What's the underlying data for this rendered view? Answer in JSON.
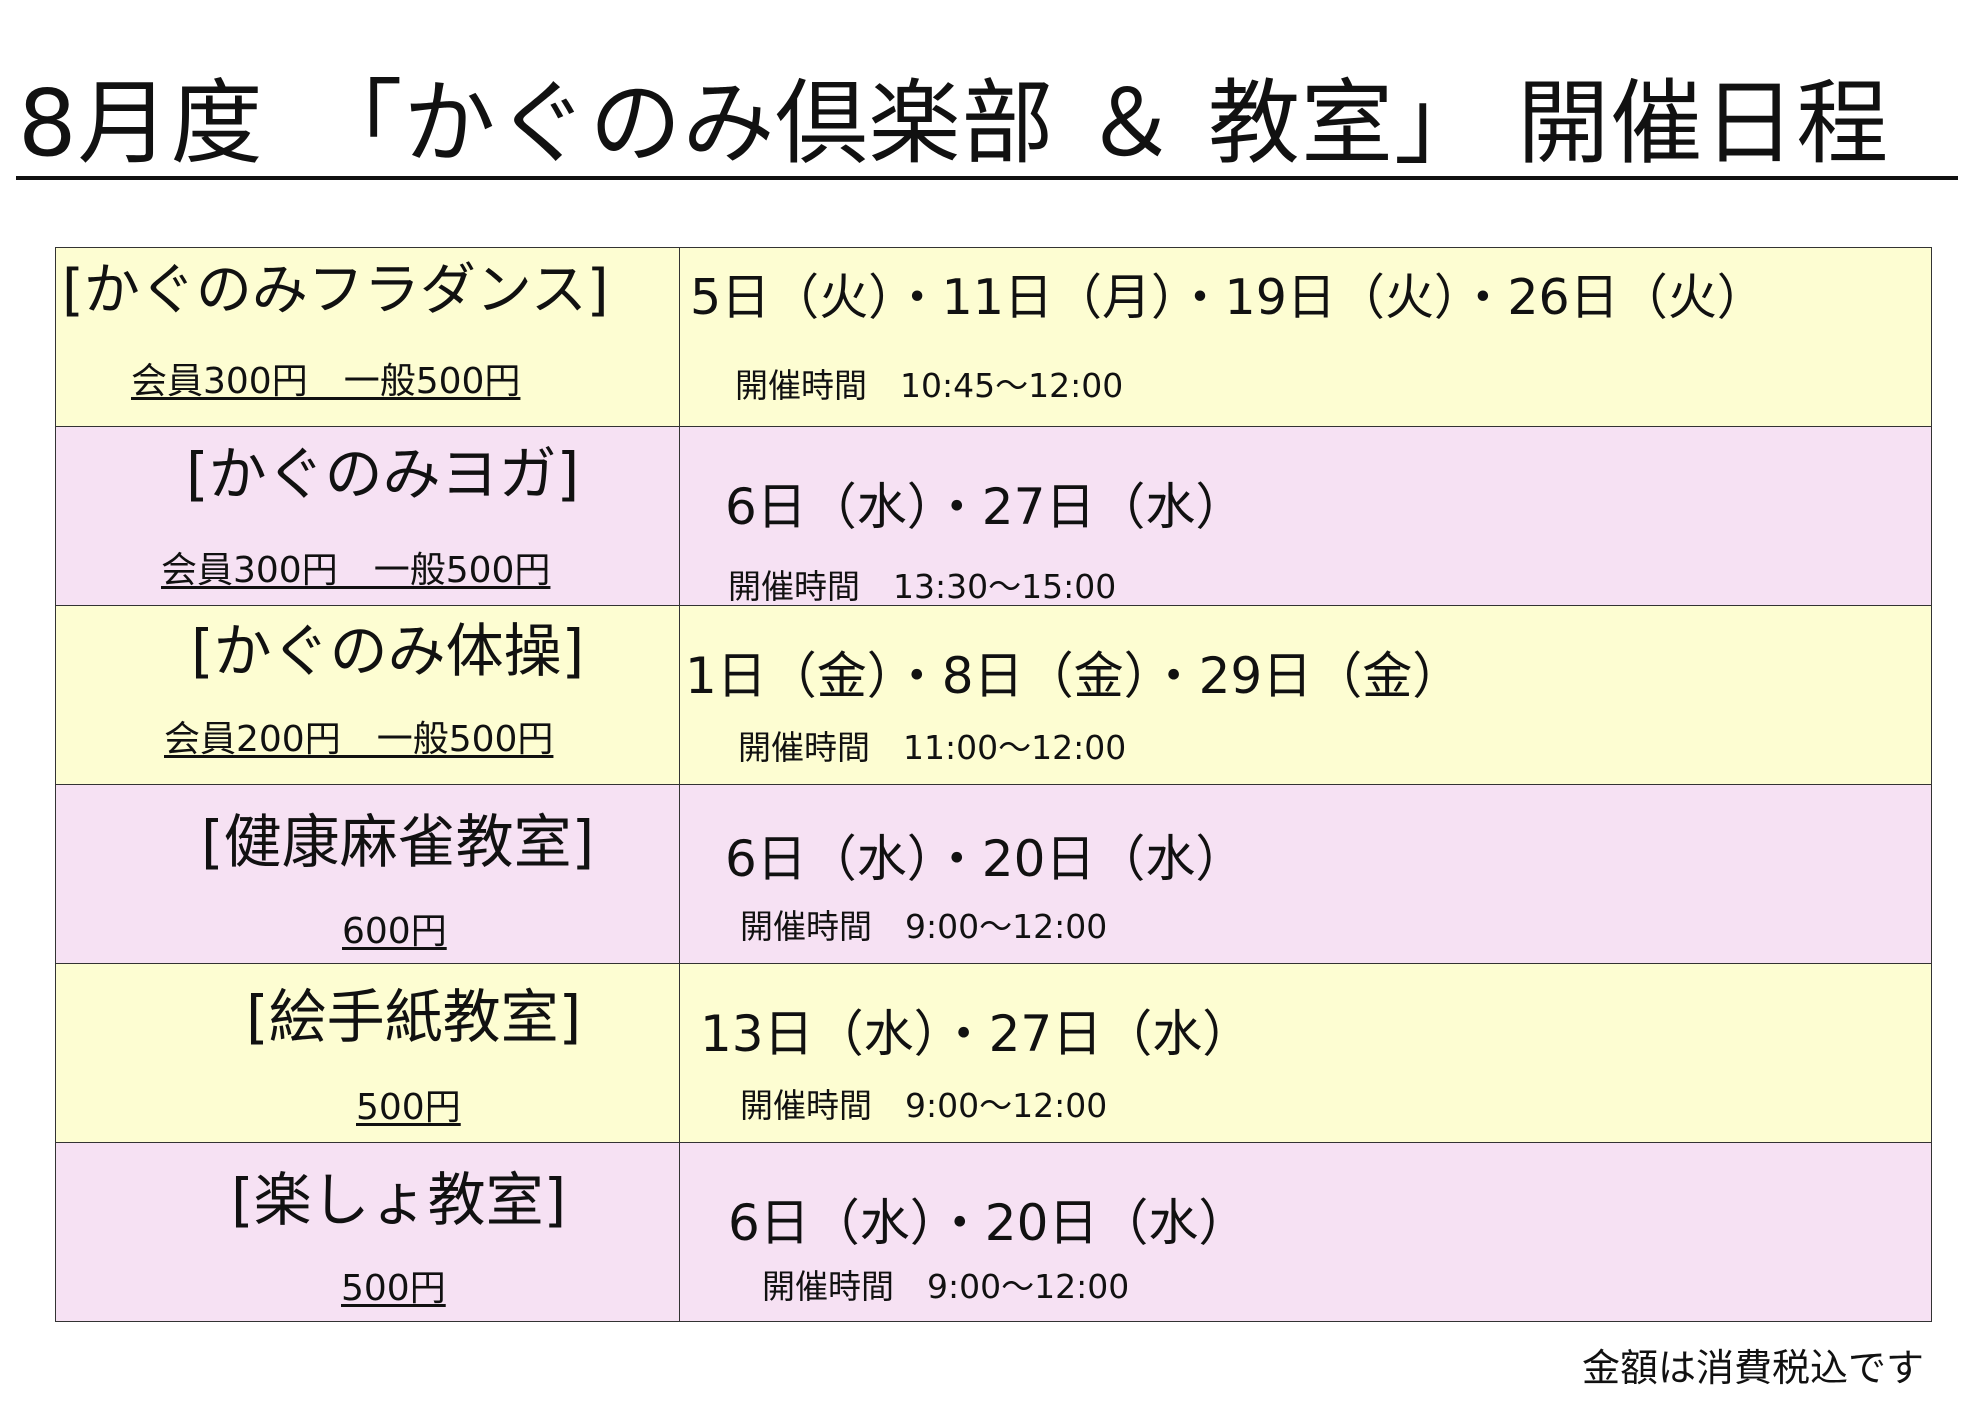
{
  "title": "8月度　「かぐのみ倶楽部 ＆ 教室」 開催日程",
  "time_label": "開催時間",
  "rows": [
    {
      "name": "[かぐのみフラダンス]",
      "fee": "会員300円　一般500円",
      "dates": "5日（火）・11日（月）・19日（火）・26日（火）",
      "time": "10:45～12:00",
      "color": "#fdfdd2"
    },
    {
      "name": "[かぐのみヨガ]",
      "fee": "会員300円　一般500円",
      "dates": "6日（水）・27日（水）",
      "time": "13:30～15:00",
      "color": "#f6e1f3"
    },
    {
      "name": "[かぐのみ体操]",
      "fee": "会員200円　一般500円",
      "dates": "1日（金）・8日（金）・29日（金）",
      "time": "11:00～12:00",
      "color": "#fdfdd2"
    },
    {
      "name": "[健康麻雀教室]",
      "fee": "600円",
      "dates": "6日（水）・20日（水）",
      "time": "9:00～12:00",
      "color": "#f6e1f3"
    },
    {
      "name": "[絵手紙教室]",
      "fee": "500円",
      "dates": "13日（水）・27日（水）",
      "time": "9:00～12:00",
      "color": "#fdfdd2"
    },
    {
      "name": "[楽しょ教室]",
      "fee": "500円",
      "dates": "6日（水）・20日（水）",
      "time": "9:00～12:00",
      "color": "#f6e1f3"
    }
  ],
  "footnote": "金額は消費税込です"
}
